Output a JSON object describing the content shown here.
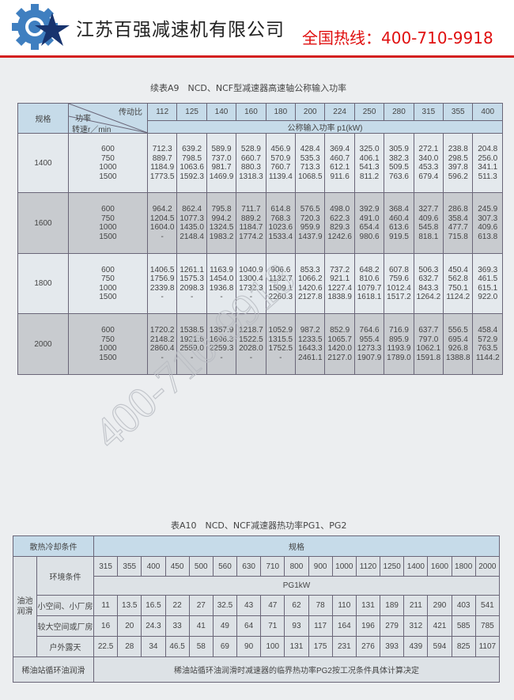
{
  "header": {
    "company_name": "江苏百强减速机有限公司",
    "hotline": "全国热线：400-710-9918",
    "brand_color": "#1f5fa8",
    "hotline_color": "#e01010"
  },
  "watermark": "400-710-9918",
  "table_a9": {
    "title": "续表A9　NCD、NCF型减速器高速轴公称输入功率",
    "col_spec": "规格",
    "diag_ratio": "传动比",
    "diag_power": "功率",
    "diag_speed": "转速r／min",
    "unit_row": "公称输入功率 p1(kW)",
    "ratios": [
      "112",
      "125",
      "140",
      "160",
      "180",
      "200",
      "224",
      "250",
      "280",
      "315",
      "355",
      "400"
    ],
    "speeds": [
      "600",
      "750",
      "1000",
      "1500"
    ],
    "rows": [
      {
        "size": "1400",
        "values": [
          [
            "712.3",
            "889.7",
            "1184.9",
            "1773.5"
          ],
          [
            "639.2",
            "798.5",
            "1063.6",
            "1592.3"
          ],
          [
            "589.9",
            "737.0",
            "981.7",
            "1469.9"
          ],
          [
            "528.9",
            "660.7",
            "880.3",
            "1318.3"
          ],
          [
            "456.9",
            "570.9",
            "760.7",
            "1139.4"
          ],
          [
            "428.4",
            "535.3",
            "713.3",
            "1068.5"
          ],
          [
            "369.4",
            "460.7",
            "612.1",
            "911.6"
          ],
          [
            "325.0",
            "406.1",
            "541.3",
            "811.2"
          ],
          [
            "305.9",
            "382.3",
            "509.5",
            "763.6"
          ],
          [
            "272.1",
            "340.0",
            "453.3",
            "679.4"
          ],
          [
            "238.8",
            "298.5",
            "397.8",
            "596.2"
          ],
          [
            "204.8",
            "256.0",
            "341.1",
            "511.3"
          ]
        ]
      },
      {
        "size": "1600",
        "values": [
          [
            "964.2",
            "1204.5",
            "1604.0",
            "-"
          ],
          [
            "862.4",
            "1077.3",
            "1435.0",
            "2148.4"
          ],
          [
            "795.8",
            "994.2",
            "1324.5",
            "1983.2"
          ],
          [
            "711.7",
            "889.2",
            "1184.7",
            "1774.2"
          ],
          [
            "614.8",
            "768.3",
            "1023.6",
            "1533.4"
          ],
          [
            "576.5",
            "720.3",
            "959.9",
            "1437.9"
          ],
          [
            "498.0",
            "622.3",
            "829.3",
            "1242.6"
          ],
          [
            "392.9",
            "491.0",
            "654.4",
            "980.6"
          ],
          [
            "368.4",
            "460.4",
            "613.6",
            "919.5"
          ],
          [
            "327.7",
            "409.6",
            "545.8",
            "818.1"
          ],
          [
            "286.8",
            "358.4",
            "477.7",
            "715.8"
          ],
          [
            "245.9",
            "307.3",
            "409.6",
            "613.8"
          ]
        ]
      },
      {
        "size": "1800",
        "values": [
          [
            "1406.5",
            "1756.9",
            "2339.8",
            "-"
          ],
          [
            "1261.1",
            "1575.3",
            "2098.3",
            "-"
          ],
          [
            "1163.9",
            "1454.0",
            "1936.8",
            "-"
          ],
          [
            "1040.9",
            "1300.4",
            "1732.3",
            "-"
          ],
          [
            "906.6",
            "1132.7",
            "1509.1",
            "2260.3"
          ],
          [
            "853.3",
            "1066.2",
            "1420.6",
            "2127.8"
          ],
          [
            "737.2",
            "921.1",
            "1227.4",
            "1838.9"
          ],
          [
            "648.2",
            "810.6",
            "1079.7",
            "1618.1"
          ],
          [
            "607.8",
            "759.6",
            "1012.4",
            "1517.2"
          ],
          [
            "506.3",
            "632.7",
            "843.3",
            "1264.2"
          ],
          [
            "450.4",
            "562.8",
            "750.1",
            "1124.2"
          ],
          [
            "369.3",
            "461.5",
            "615.1",
            "922.0"
          ]
        ]
      },
      {
        "size": "2000",
        "values": [
          [
            "1720.2",
            "2148.2",
            "2860.4",
            "-"
          ],
          [
            "1538.5",
            "1921.6",
            "2559.0",
            "-"
          ],
          [
            "1357.9",
            "1696.3",
            "2259.3",
            "-"
          ],
          [
            "1218.7",
            "1522.5",
            "2028.0",
            "-"
          ],
          [
            "1052.9",
            "1315.5",
            "1752.5",
            "-"
          ],
          [
            "987.2",
            "1233.5",
            "1643.3",
            "2461.1"
          ],
          [
            "852.9",
            "1065.7",
            "1420.0",
            "2127.0"
          ],
          [
            "764.6",
            "955.4",
            "1273.3",
            "1907.9"
          ],
          [
            "716.9",
            "895.9",
            "1193.9",
            "1789.0"
          ],
          [
            "637.7",
            "797.0",
            "1062.1",
            "1591.8"
          ],
          [
            "556.5",
            "695.4",
            "926.8",
            "1388.8"
          ],
          [
            "458.4",
            "572.9",
            "763.5",
            "1144.2"
          ]
        ]
      }
    ]
  },
  "table_a10": {
    "title": "表A10　NCD、NCF减速器热功率PG1、PG2",
    "cooling_label": "散热冷却条件",
    "spec_label": "规格",
    "env_label": "环境条件",
    "oil_bath_label": "油池润滑",
    "unit_label": "PG1kW",
    "sizes": [
      "315",
      "355",
      "400",
      "450",
      "500",
      "560",
      "630",
      "710",
      "800",
      "900",
      "1000",
      "1120",
      "1250",
      "1400",
      "1600",
      "1800",
      "2000"
    ],
    "rows": [
      {
        "condition": "小空间、小厂房",
        "values": [
          "11",
          "13.5",
          "16.5",
          "22",
          "27",
          "32.5",
          "43",
          "47",
          "62",
          "78",
          "110",
          "131",
          "189",
          "211",
          "290",
          "403",
          "541"
        ]
      },
      {
        "condition": "较大空间或厂房",
        "values": [
          "16",
          "20",
          "24.3",
          "33",
          "41",
          "49",
          "64",
          "71",
          "93",
          "117",
          "164",
          "196",
          "279",
          "312",
          "421",
          "585",
          "785"
        ]
      },
      {
        "condition": "户外露天",
        "values": [
          "22.5",
          "28",
          "34",
          "46.5",
          "58",
          "69",
          "90",
          "100",
          "131",
          "175",
          "231",
          "276",
          "393",
          "439",
          "594",
          "825",
          "1107"
        ]
      }
    ],
    "circulating_label": "稀油站循环油润滑",
    "circulating_note": "稀油站循环油润滑时减速器的临界热功率PG2按工况条件具体计算决定"
  }
}
